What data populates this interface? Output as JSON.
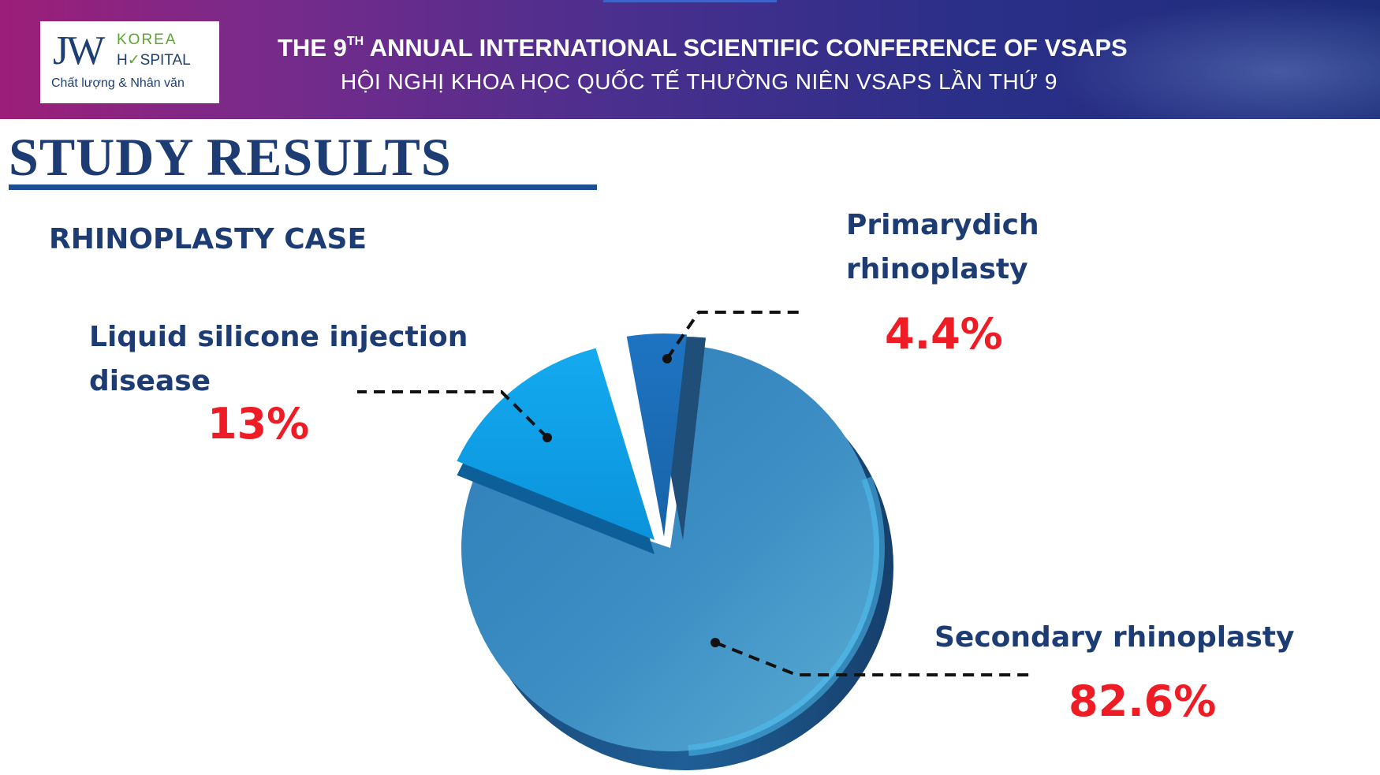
{
  "header": {
    "logo": {
      "brand": "JW",
      "line1": "KOREA",
      "line2_pre": "H",
      "line2_check": "✓",
      "line2_post": "SPITAL",
      "tagline": "Chất lượng & Nhân văn"
    },
    "title_en_pre": "THE 9",
    "title_en_sup": "TH",
    "title_en_post": " ANNUAL INTERNATIONAL SCIENTIFIC CONFERENCE OF VSAPS",
    "title_vi": "HỘI NGHỊ KHOA HỌC QUỐC TẾ THƯỜNG NIÊN VSAPS LẦN THỨ 9"
  },
  "section_title": "STUDY RESULTS",
  "chart_title": "RHINOPLASTY CASE",
  "colors": {
    "label_navy": "#1d3c73",
    "percent_red": "#ee1c24",
    "slice_primary": "#1f78c8",
    "slice_liquid": "#10a7ee",
    "slice_secondary": "#3d8dc0"
  },
  "chart_data": {
    "type": "pie",
    "title": "RHINOPLASTY CASE",
    "slices": [
      {
        "key": "primary",
        "label_line1": "Primarydich",
        "label_line2": "rhinoplasty",
        "value": 4.4,
        "value_label": "4.4%"
      },
      {
        "key": "liquid",
        "label_line1": "Liquid silicone injection",
        "label_line2": "disease",
        "value": 13,
        "value_label": "13%"
      },
      {
        "key": "secondary",
        "label_line1": "Secondary rhinoplasty",
        "label_line2": "",
        "value": 82.6,
        "value_label": "82.6%"
      }
    ]
  }
}
